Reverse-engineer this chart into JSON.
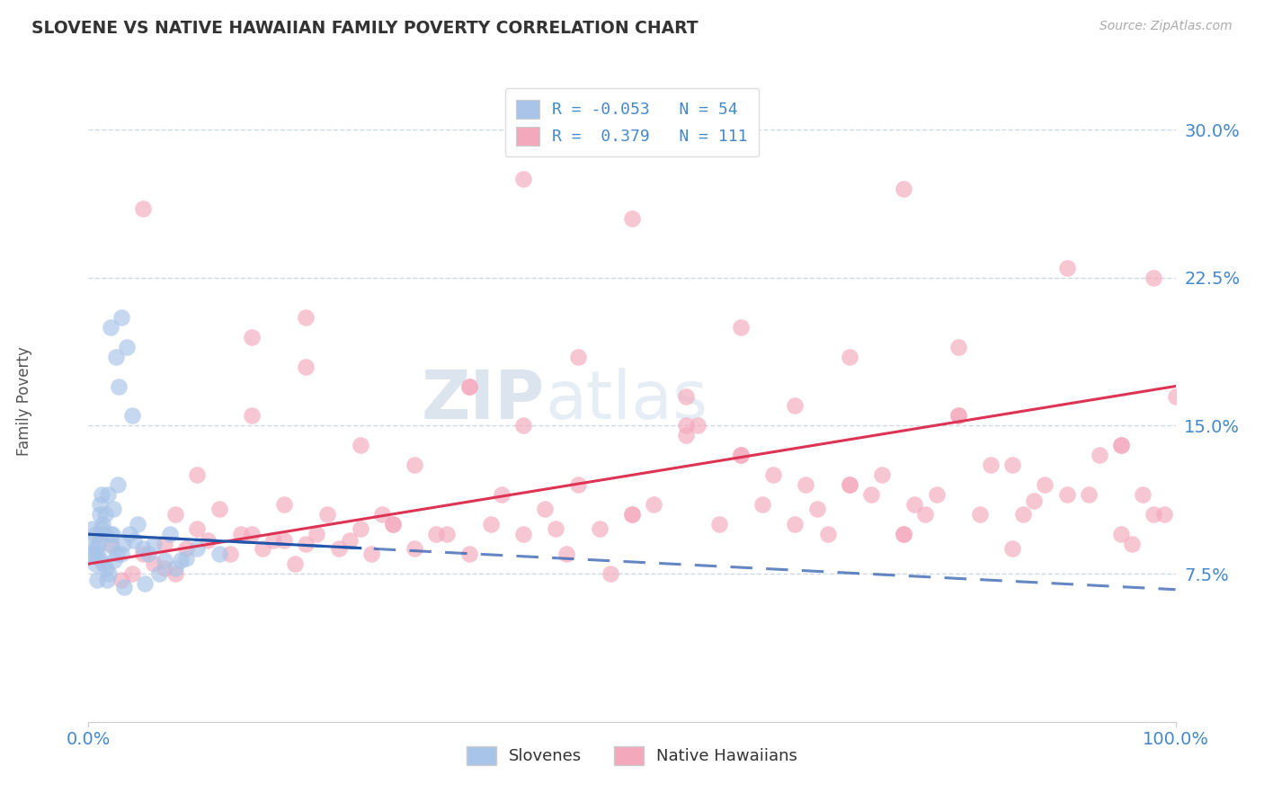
{
  "title": "SLOVENE VS NATIVE HAWAIIAN FAMILY POVERTY CORRELATION CHART",
  "source_text": "Source: ZipAtlas.com",
  "ylabel": "Family Poverty",
  "xlim": [
    0.0,
    100.0
  ],
  "ylim": [
    0.0,
    32.5
  ],
  "xtick_vals": [
    0.0,
    100.0
  ],
  "xticklabels": [
    "0.0%",
    "100.0%"
  ],
  "ytick_vals": [
    7.5,
    15.0,
    22.5,
    30.0
  ],
  "yticklabels": [
    "7.5%",
    "15.0%",
    "22.5%",
    "30.0%"
  ],
  "slovene_color": "#a8c4e8",
  "hawaiian_color": "#f4a8bc",
  "slovene_line_color": "#2255aa",
  "hawaiian_line_color": "#dd3355",
  "R_slovene": -0.053,
  "N_slovene": 54,
  "R_hawaiian": 0.379,
  "N_hawaiian": 111,
  "legend_slovene_label": "Slovenes",
  "legend_hawaiian_label": "Native Hawaiians",
  "watermark_zip": "ZIP",
  "watermark_atlas": "atlas",
  "background_color": "#ffffff",
  "grid_color": "#c8d4e0",
  "slovene_x": [
    0.3,
    0.4,
    0.5,
    0.5,
    0.6,
    0.6,
    0.7,
    0.8,
    0.8,
    0.9,
    1.0,
    1.0,
    1.1,
    1.2,
    1.2,
    1.3,
    1.4,
    1.5,
    1.5,
    1.6,
    1.7,
    1.8,
    1.9,
    2.0,
    2.0,
    2.1,
    2.2,
    2.3,
    2.4,
    2.5,
    2.6,
    2.7,
    2.8,
    3.0,
    3.0,
    3.2,
    3.3,
    3.5,
    3.8,
    4.0,
    4.2,
    4.5,
    5.0,
    5.2,
    5.5,
    6.0,
    6.5,
    7.0,
    7.5,
    8.0,
    8.5,
    9.0,
    10.0,
    12.0
  ],
  "slovene_y": [
    8.5,
    9.8,
    9.2,
    8.5,
    9.5,
    8.0,
    8.8,
    8.5,
    7.2,
    9.0,
    11.0,
    10.5,
    8.2,
    9.8,
    11.5,
    10.0,
    8.0,
    10.5,
    9.5,
    7.8,
    7.2,
    11.5,
    7.5,
    20.0,
    9.5,
    8.9,
    9.5,
    10.8,
    8.2,
    18.5,
    8.5,
    12.0,
    17.0,
    20.5,
    8.5,
    9.0,
    6.8,
    19.0,
    9.5,
    15.5,
    9.2,
    10.0,
    8.8,
    7.0,
    8.5,
    9.0,
    7.5,
    8.2,
    9.5,
    7.8,
    8.2,
    8.3,
    8.8,
    8.5
  ],
  "hawaiian_x": [
    1.0,
    2.0,
    3.0,
    4.0,
    5.0,
    5.0,
    6.0,
    7.0,
    8.0,
    8.0,
    9.0,
    10.0,
    10.0,
    11.0,
    12.0,
    13.0,
    14.0,
    15.0,
    15.0,
    16.0,
    17.0,
    18.0,
    19.0,
    20.0,
    20.0,
    21.0,
    22.0,
    23.0,
    24.0,
    25.0,
    25.0,
    26.0,
    27.0,
    28.0,
    30.0,
    30.0,
    32.0,
    33.0,
    35.0,
    35.0,
    37.0,
    38.0,
    40.0,
    40.0,
    42.0,
    44.0,
    45.0,
    45.0,
    47.0,
    48.0,
    50.0,
    50.0,
    52.0,
    55.0,
    55.0,
    58.0,
    60.0,
    60.0,
    62.0,
    63.0,
    65.0,
    65.0,
    67.0,
    68.0,
    70.0,
    70.0,
    72.0,
    73.0,
    75.0,
    75.0,
    77.0,
    78.0,
    80.0,
    80.0,
    82.0,
    83.0,
    85.0,
    85.0,
    87.0,
    88.0,
    90.0,
    90.0,
    92.0,
    93.0,
    95.0,
    95.0,
    97.0,
    98.0,
    98.0,
    99.0,
    7.0,
    18.0,
    28.0,
    43.0,
    56.0,
    66.0,
    76.0,
    86.0,
    96.0,
    15.0,
    35.0,
    55.0,
    75.0,
    95.0,
    20.0,
    40.0,
    60.0,
    80.0,
    100.0,
    50.0,
    70.0
  ],
  "hawaiian_y": [
    9.5,
    9.0,
    7.2,
    7.5,
    26.0,
    8.5,
    8.0,
    7.8,
    7.5,
    10.5,
    8.8,
    9.8,
    12.5,
    9.2,
    10.8,
    8.5,
    9.5,
    9.5,
    15.5,
    8.8,
    9.2,
    11.0,
    8.0,
    9.0,
    18.0,
    9.5,
    10.5,
    8.8,
    9.2,
    14.0,
    9.8,
    8.5,
    10.5,
    10.0,
    13.0,
    8.8,
    9.5,
    9.5,
    8.5,
    17.0,
    10.0,
    11.5,
    27.5,
    9.5,
    10.8,
    8.5,
    12.0,
    18.5,
    9.8,
    7.5,
    25.5,
    10.5,
    11.0,
    14.5,
    16.5,
    10.0,
    20.0,
    13.5,
    11.0,
    12.5,
    10.0,
    16.0,
    10.8,
    9.5,
    18.5,
    12.0,
    11.5,
    12.5,
    27.0,
    9.5,
    10.5,
    11.5,
    19.0,
    15.5,
    10.5,
    13.0,
    13.0,
    8.8,
    11.2,
    12.0,
    23.0,
    11.5,
    11.5,
    13.5,
    14.0,
    9.5,
    11.5,
    10.5,
    22.5,
    10.5,
    9.0,
    9.2,
    10.0,
    9.8,
    15.0,
    12.0,
    11.0,
    10.5,
    9.0,
    19.5,
    17.0,
    15.0,
    9.5,
    14.0,
    20.5,
    15.0,
    13.5,
    15.5,
    16.5,
    10.5,
    12.0
  ]
}
